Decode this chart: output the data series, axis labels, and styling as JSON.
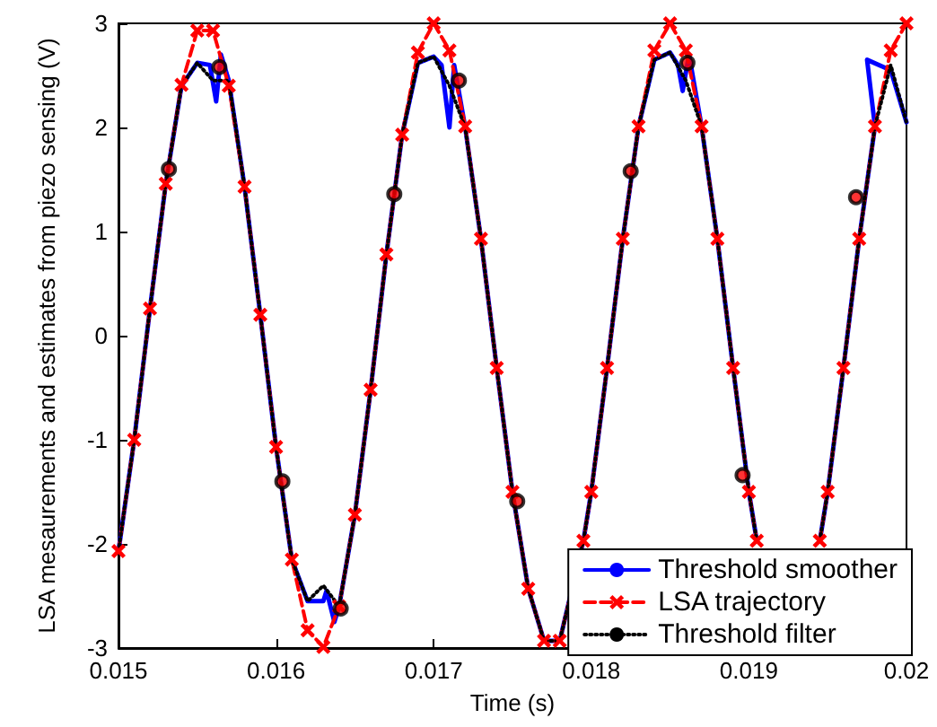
{
  "chart_data": {
    "type": "line",
    "xlabel": "Time (s)",
    "ylabel": "LSA mesaurements and estimates from piezo sensing (V)",
    "xlim": [
      0.015,
      0.02
    ],
    "xticks": [
      0.015,
      0.016,
      0.017,
      0.018,
      0.019,
      0.02
    ],
    "ylim": [
      -3,
      3
    ],
    "yticks": [
      -3,
      -2,
      -1,
      0,
      1,
      2,
      3
    ],
    "grid": false,
    "legend": "bottom right",
    "series": [
      {
        "name": "Threshold smoother",
        "color": "#0000ff",
        "line_style": "solid",
        "marker": "none",
        "x": [
          0.015,
          0.0151,
          0.0152,
          0.0153,
          0.0154,
          0.0155,
          0.01558,
          0.01562,
          0.01565,
          0.0157,
          0.0158,
          0.0159,
          0.016,
          0.0161,
          0.0162,
          0.0163,
          0.01632,
          0.01637,
          0.0164,
          0.0165,
          0.0166,
          0.0167,
          0.0168,
          0.0169,
          0.017,
          0.01705,
          0.0171,
          0.01713,
          0.0172,
          0.0173,
          0.0174,
          0.0175,
          0.0176,
          0.0177,
          0.0178,
          0.01795,
          0.018,
          0.0181,
          0.0182,
          0.0183,
          0.0184,
          0.0185,
          0.01855,
          0.01858,
          0.01862,
          0.0187,
          0.0188,
          0.0189,
          0.019,
          0.01905,
          0.0192,
          0.0193,
          0.01945,
          0.0195,
          0.0196,
          0.0197,
          0.0198,
          0.01975,
          0.0199,
          0.02
        ],
        "values": [
          -2.07,
          -1.0,
          0.26,
          1.46,
          2.4,
          2.62,
          2.6,
          2.25,
          2.7,
          2.45,
          1.43,
          0.2,
          -1.07,
          -2.15,
          -2.55,
          -2.55,
          -2.45,
          -2.75,
          -2.6,
          -1.72,
          -0.52,
          0.78,
          1.93,
          2.62,
          2.68,
          2.6,
          2.0,
          2.6,
          2.0,
          0.93,
          -0.31,
          -1.5,
          -2.43,
          -2.93,
          -2.93,
          -1.97,
          -1.5,
          -0.31,
          0.93,
          2.01,
          2.65,
          2.72,
          2.6,
          2.35,
          2.7,
          2.01,
          0.93,
          -0.31,
          -1.5,
          -1.97,
          null,
          null,
          -1.97,
          -1.5,
          -0.31,
          0.93,
          2.01,
          2.65,
          2.55,
          2.05
        ]
      },
      {
        "name": "LSA trajectory",
        "color": "#ff0000",
        "line_style": "dashed",
        "marker": "cross",
        "x": [
          0.015,
          0.0151,
          0.0152,
          0.0153,
          0.0154,
          0.0155,
          0.0156,
          0.0157,
          0.0158,
          0.0159,
          0.016,
          0.0161,
          0.0162,
          0.0163,
          0.0164,
          0.0165,
          0.0166,
          0.0167,
          0.0168,
          0.0169,
          0.017,
          0.0171,
          0.0172,
          0.0173,
          0.0174,
          0.0175,
          0.0176,
          0.0177,
          0.0178,
          0.01795,
          0.018,
          0.0181,
          0.0182,
          0.0183,
          0.0184,
          0.0185,
          0.0186,
          0.0187,
          0.0188,
          0.0189,
          0.019,
          0.01905,
          0.0192,
          0.0193,
          0.01945,
          0.0195,
          0.0196,
          0.0197,
          0.0198,
          0.0199,
          0.02
        ],
        "values": [
          -2.07,
          -1.0,
          0.26,
          1.46,
          2.41,
          2.93,
          2.93,
          2.4,
          1.43,
          0.2,
          -1.07,
          -2.15,
          -2.83,
          -2.99,
          -2.6,
          -1.72,
          -0.52,
          0.78,
          1.93,
          2.72,
          3.0,
          2.74,
          2.01,
          0.93,
          -0.31,
          -1.5,
          -2.43,
          -2.93,
          -2.93,
          -1.97,
          -1.5,
          -0.31,
          0.93,
          2.01,
          2.74,
          3.0,
          2.74,
          2.01,
          0.93,
          -0.31,
          -1.5,
          -1.97,
          null,
          null,
          -1.97,
          -1.5,
          -0.31,
          0.93,
          2.01,
          2.74,
          3.0
        ]
      },
      {
        "name": "Threshold filter",
        "color": "#000000",
        "line_style": "dotted",
        "marker": "none",
        "x": [
          0.015,
          0.0151,
          0.0152,
          0.0153,
          0.0154,
          0.0155,
          0.0156,
          0.0157,
          0.0158,
          0.0159,
          0.016,
          0.0161,
          0.0162,
          0.0163,
          0.0164,
          0.0165,
          0.0166,
          0.0167,
          0.0168,
          0.0169,
          0.017,
          0.0171,
          0.0172,
          0.0173,
          0.0174,
          0.0175,
          0.0176,
          0.0177,
          0.0178,
          0.01795,
          0.018,
          0.0181,
          0.0182,
          0.0183,
          0.0184,
          0.0185,
          0.0186,
          0.0187,
          0.0188,
          0.0189,
          0.019,
          0.01905,
          0.0192,
          0.0193,
          0.01945,
          0.0195,
          0.0196,
          0.0197,
          0.0198,
          0.0199,
          0.02
        ],
        "values": [
          -2.07,
          -1.0,
          0.26,
          1.46,
          2.4,
          2.62,
          2.45,
          2.45,
          1.43,
          0.2,
          -1.07,
          -2.15,
          -2.55,
          -2.4,
          -2.6,
          -1.72,
          -0.52,
          0.78,
          1.93,
          2.62,
          2.68,
          2.4,
          2.0,
          0.93,
          -0.31,
          -1.5,
          -2.43,
          -2.93,
          -2.93,
          -1.97,
          -1.5,
          -0.31,
          0.93,
          2.01,
          2.65,
          2.72,
          2.45,
          2.01,
          0.93,
          -0.31,
          -1.5,
          -1.97,
          null,
          null,
          -1.97,
          -1.5,
          -0.31,
          0.93,
          2.01,
          2.6,
          2.05
        ]
      },
      {
        "type": "scatter",
        "color": "#000000",
        "marker": "circle",
        "x": [
          0.01532,
          0.01564,
          0.01604,
          0.01641,
          0.01675,
          0.01716,
          0.01753,
          0.01825,
          0.01861,
          0.01896,
          0.01968
        ],
        "values": [
          1.6,
          2.58,
          -1.4,
          -2.62,
          1.36,
          2.45,
          -1.59,
          1.58,
          2.62,
          -1.34,
          1.33
        ]
      }
    ]
  }
}
